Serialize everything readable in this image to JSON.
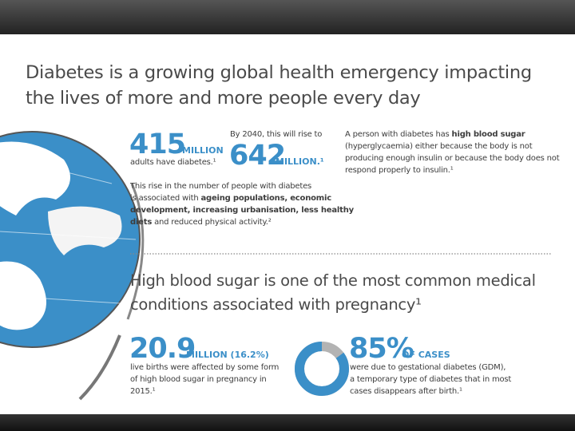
{
  "header": {
    "title_lines": [
      "Diabetes is a growing global health emergency impacting",
      "the lives of more and more people every day"
    ]
  },
  "stats": {
    "current": {
      "number": "415",
      "unit": "MILLION",
      "caption": "adults have diabetes.¹"
    },
    "forecast": {
      "lead": "By 2040, this will rise to",
      "number": "642",
      "unit": "MILLION.¹"
    }
  },
  "definition": {
    "lines": [
      [
        "A person with diabetes has ",
        "high blood sugar"
      ],
      [
        "(hyperglycaemia) either because the body is not"
      ],
      [
        "producing enough insulin or because the body does not"
      ],
      [
        "respond properly to insulin.¹"
      ]
    ]
  },
  "causes": {
    "lines": [
      [
        "This rise in the number of people with diabetes"
      ],
      [
        "is associated with ",
        "ageing populations, economic"
      ],
      [
        "development, increasing urbanisation, less healthy"
      ],
      [
        "diets",
        " and reduced physical activity.²"
      ]
    ]
  },
  "pregnancy": {
    "heading_lines": [
      "High blood sugar is one of the most common medical",
      "conditions associated with pregnancy¹"
    ],
    "births": {
      "number": "20.9",
      "unit": "MILLION (16.2%)",
      "lines": [
        "live births were affected by some form",
        "of high blood sugar in pregnancy in",
        "2015.¹"
      ]
    },
    "gdm": {
      "percent": {
        "value": 85,
        "label": "85%"
      },
      "unit": "OF CASES",
      "lines": [
        "were due to gestational diabetes (GDM),",
        "a temporary type of diabetes that in most",
        "cases disappears after birth.¹"
      ]
    }
  }
}
